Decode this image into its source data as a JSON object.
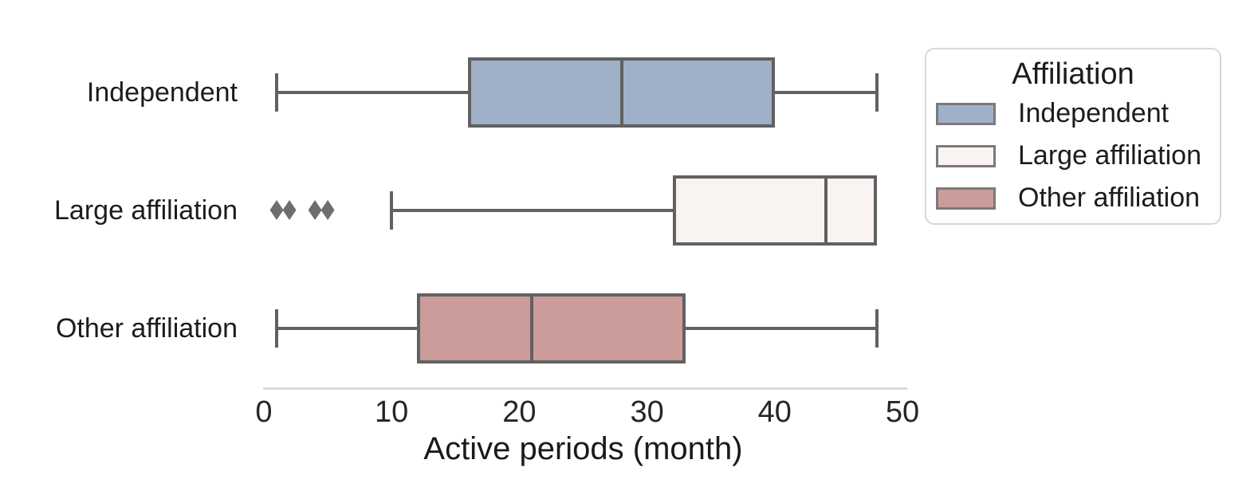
{
  "chart_data": {
    "type": "boxplot",
    "orientation": "horizontal",
    "xlabel": "Active periods (month)",
    "xlim": [
      0,
      50
    ],
    "xticks": [
      "0",
      "10",
      "20",
      "30",
      "40",
      "50"
    ],
    "categories": [
      "Independent",
      "Large affiliation",
      "Other affiliation"
    ],
    "boxes": [
      {
        "category": "Independent",
        "whisker_low": 1,
        "q1": 16,
        "median": 28,
        "q3": 40,
        "whisker_high": 48,
        "outliers": [],
        "fill": "#a0b0c8"
      },
      {
        "category": "Large affiliation",
        "whisker_low": 10,
        "q1": 32,
        "median": 44,
        "q3": 48,
        "whisker_high": 48,
        "outliers": [
          1,
          2,
          4,
          5
        ],
        "fill": "#f9f4f1"
      },
      {
        "category": "Other affiliation",
        "whisker_low": 1,
        "q1": 12,
        "median": 21,
        "q3": 33,
        "whisker_high": 48,
        "outliers": [],
        "fill": "#cb9c9a"
      }
    ],
    "legend": {
      "title": "Affiliation",
      "position": "upper right",
      "entries": [
        {
          "label": "Independent",
          "fill": "#a0b0c8"
        },
        {
          "label": "Large affiliation",
          "fill": "#f9f4f1"
        },
        {
          "label": "Other affiliation",
          "fill": "#cb9c9a"
        }
      ]
    },
    "colors": {
      "line": "#616161",
      "outlier_marker": "#6e6e6e",
      "axis_spine": "#d9d9d9",
      "tick_text": "#262626",
      "label_text": "#1a1a1a"
    },
    "grid": "off",
    "background": "#ffffff"
  }
}
